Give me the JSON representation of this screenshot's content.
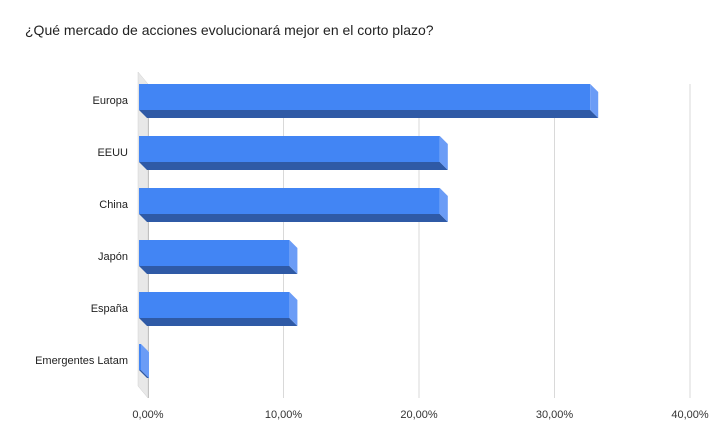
{
  "chart_data": {
    "type": "bar",
    "orientation": "horizontal",
    "style": "3d",
    "title": "¿Qué mercado de acciones evolucionará mejor en el corto plazo?",
    "categories": [
      "Europa",
      "EEUU",
      "China",
      "Japón",
      "España",
      "Emergentes Latam"
    ],
    "values": [
      33.3,
      22.2,
      22.2,
      11.1,
      11.1,
      0.0
    ],
    "xlim": [
      0,
      40
    ],
    "x_ticks": [
      "0,00%",
      "10,00%",
      "20,00%",
      "30,00%",
      "40,00%"
    ],
    "x_tick_values": [
      0,
      10,
      20,
      30,
      40
    ],
    "grid": true,
    "legend": "none",
    "colors": {
      "bar_front": "#4285f4",
      "bar_bottom": "#2f5aa6",
      "bar_side": "#6b9cf6",
      "grid": "#d9d9d9",
      "axis": "#333333",
      "wall": "#e8e8e8"
    }
  }
}
